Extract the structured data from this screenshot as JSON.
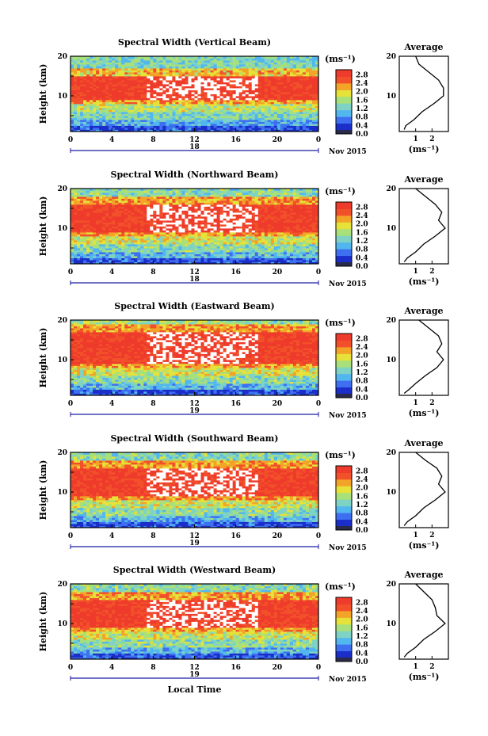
{
  "figure": {
    "x_axis_title": "Local Time",
    "colorbar_unit": "(ms⁻¹)",
    "colorbar_ticks": [
      "0.0",
      "0.4",
      "0.8",
      "1.2",
      "1.6",
      "2.0",
      "2.4",
      "2.8"
    ],
    "colorbar_colors": [
      "#ffffff",
      "#2a2a4a",
      "#1b2ec9",
      "#3d6ff0",
      "#52b6ef",
      "#7fd3c4",
      "#a8e07a",
      "#e6e23a",
      "#f3a428",
      "#f2502a",
      "#ee3b2b"
    ],
    "y_axis_title": "Height (km)",
    "x_ticks": [
      "0",
      "4",
      "8",
      "12",
      "16",
      "20",
      "0"
    ],
    "y_ticks": [
      "10",
      "20"
    ],
    "date_labels": [
      "18",
      "18",
      "19",
      "19",
      "19"
    ],
    "month_year": "Nov 2015",
    "average_title": "Average",
    "average_xlabel": "(ms⁻¹)",
    "average_x_ticks": [
      "1",
      "2"
    ]
  },
  "chart_data": [
    {
      "type": "heatmap",
      "title": "Spectral Width (Vertical Beam)",
      "xlabel": "",
      "ylabel": "Height (km)",
      "xlim": [
        0,
        24
      ],
      "ylim": [
        1,
        20
      ],
      "clim": [
        0,
        3.0
      ],
      "bands": [
        {
          "height_km": [
            1,
            2.5
          ],
          "value": 0.3
        },
        {
          "height_km": [
            2.5,
            4
          ],
          "value": 0.8
        },
        {
          "height_km": [
            4,
            6
          ],
          "value": 1.2
        },
        {
          "height_km": [
            6,
            8
          ],
          "value": 1.6
        },
        {
          "height_km": [
            8,
            9
          ],
          "value": 2.1
        },
        {
          "height_km": [
            9,
            15
          ],
          "value": 2.8
        },
        {
          "height_km": [
            15,
            17
          ],
          "value": 2.0
        },
        {
          "height_km": [
            17,
            20
          ],
          "value": 1.2
        }
      ],
      "average_profile": {
        "x": [
          0.3,
          0.4,
          0.9,
          1.4,
          2.1,
          2.7,
          2.7,
          2.4,
          1.8,
          1.2,
          1.0
        ],
        "y": [
          1.5,
          2.5,
          4,
          6,
          8,
          10,
          12,
          14,
          16,
          18,
          20
        ]
      }
    },
    {
      "type": "heatmap",
      "title": "Spectral Width (Northward Beam)",
      "xlabel": "",
      "ylabel": "Height (km)",
      "xlim": [
        0,
        24
      ],
      "ylim": [
        1,
        20
      ],
      "clim": [
        0,
        3.0
      ],
      "bands": [
        {
          "height_km": [
            1,
            2.5
          ],
          "value": 0.3
        },
        {
          "height_km": [
            2.5,
            4
          ],
          "value": 0.9
        },
        {
          "height_km": [
            4,
            6
          ],
          "value": 1.3
        },
        {
          "height_km": [
            6,
            8
          ],
          "value": 1.7
        },
        {
          "height_km": [
            8,
            9
          ],
          "value": 2.2
        },
        {
          "height_km": [
            9,
            16
          ],
          "value": 2.8
        },
        {
          "height_km": [
            16,
            18
          ],
          "value": 2.2
        },
        {
          "height_km": [
            18,
            20
          ],
          "value": 1.3
        }
      ],
      "average_profile": {
        "x": [
          0.3,
          0.5,
          1.0,
          1.5,
          2.2,
          2.8,
          2.4,
          2.6,
          2.2,
          1.6,
          1.0
        ],
        "y": [
          1.5,
          2.5,
          4,
          6,
          8,
          10,
          12,
          14,
          16,
          18,
          20
        ]
      }
    },
    {
      "type": "heatmap",
      "title": "Spectral Width (Eastward Beam)",
      "xlabel": "",
      "ylabel": "Height (km)",
      "xlim": [
        0,
        24
      ],
      "ylim": [
        1,
        20
      ],
      "clim": [
        0,
        3.0
      ],
      "bands": [
        {
          "height_km": [
            1,
            2.5
          ],
          "value": 0.3
        },
        {
          "height_km": [
            2.5,
            4
          ],
          "value": 0.9
        },
        {
          "height_km": [
            4,
            6
          ],
          "value": 1.3
        },
        {
          "height_km": [
            6,
            8
          ],
          "value": 1.7
        },
        {
          "height_km": [
            8,
            9
          ],
          "value": 2.2
        },
        {
          "height_km": [
            9,
            17
          ],
          "value": 2.8
        },
        {
          "height_km": [
            17,
            19
          ],
          "value": 2.2
        },
        {
          "height_km": [
            19,
            20
          ],
          "value": 1.4
        }
      ],
      "average_profile": {
        "x": [
          0.3,
          0.6,
          1.0,
          1.6,
          2.3,
          2.7,
          2.3,
          2.6,
          2.4,
          1.8,
          1.2
        ],
        "y": [
          1.5,
          2.5,
          4,
          6,
          8,
          10,
          12,
          14,
          16,
          18,
          20
        ]
      }
    },
    {
      "type": "heatmap",
      "title": "Spectral Width (Southward Beam)",
      "xlabel": "",
      "ylabel": "Height (km)",
      "xlim": [
        0,
        24
      ],
      "ylim": [
        1,
        20
      ],
      "clim": [
        0,
        3.0
      ],
      "bands": [
        {
          "height_km": [
            1,
            2.5
          ],
          "value": 0.3
        },
        {
          "height_km": [
            2.5,
            4
          ],
          "value": 0.9
        },
        {
          "height_km": [
            4,
            6
          ],
          "value": 1.3
        },
        {
          "height_km": [
            6,
            8
          ],
          "value": 1.7
        },
        {
          "height_km": [
            8,
            9
          ],
          "value": 2.2
        },
        {
          "height_km": [
            9,
            16
          ],
          "value": 2.8
        },
        {
          "height_km": [
            16,
            18
          ],
          "value": 2.2
        },
        {
          "height_km": [
            18,
            20
          ],
          "value": 1.3
        }
      ],
      "average_profile": {
        "x": [
          0.3,
          0.5,
          1.0,
          1.5,
          2.2,
          2.8,
          2.4,
          2.6,
          2.3,
          1.6,
          1.0
        ],
        "y": [
          1.5,
          2.5,
          4,
          6,
          8,
          10,
          12,
          14,
          16,
          18,
          20
        ]
      }
    },
    {
      "type": "heatmap",
      "title": "Spectral Width (Westward Beam)",
      "xlabel": "Local Time",
      "ylabel": "Height (km)",
      "xlim": [
        0,
        24
      ],
      "ylim": [
        1,
        20
      ],
      "clim": [
        0,
        3.0
      ],
      "bands": [
        {
          "height_km": [
            1,
            2.5
          ],
          "value": 0.3
        },
        {
          "height_km": [
            2.5,
            4
          ],
          "value": 0.9
        },
        {
          "height_km": [
            4,
            6
          ],
          "value": 1.3
        },
        {
          "height_km": [
            6,
            8
          ],
          "value": 1.7
        },
        {
          "height_km": [
            8,
            9
          ],
          "value": 2.2
        },
        {
          "height_km": [
            9,
            16
          ],
          "value": 2.8
        },
        {
          "height_km": [
            16,
            18
          ],
          "value": 2.2
        },
        {
          "height_km": [
            18,
            20
          ],
          "value": 1.3
        }
      ],
      "average_profile": {
        "x": [
          0.3,
          0.5,
          1.0,
          1.5,
          2.2,
          2.8,
          2.3,
          2.2,
          2.0,
          1.5,
          1.0
        ],
        "y": [
          1.5,
          2.5,
          4,
          6,
          8,
          10,
          12,
          14,
          16,
          18,
          20
        ]
      }
    }
  ]
}
